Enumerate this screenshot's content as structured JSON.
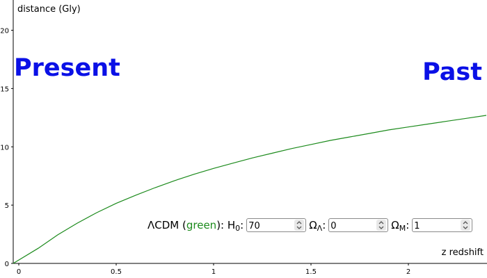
{
  "colors": {
    "curve": "#1b8a1b",
    "label_blue": "#0a10e6",
    "axis": "#000000",
    "model_text": "#1b8a1b"
  },
  "chart_data": {
    "type": "line",
    "title": "",
    "xlabel": "z redshift",
    "ylabel": "distance (Gly)",
    "xlim": [
      0,
      2.4
    ],
    "ylim": [
      0,
      22
    ],
    "x_ticks": [
      0,
      0.5,
      1,
      1.5,
      2
    ],
    "x_tick_labels": [
      "0",
      "0.5",
      "1",
      "1.5",
      "2"
    ],
    "y_ticks": [
      0,
      5,
      10,
      15,
      20
    ],
    "y_tick_labels": [
      "0",
      "5",
      "10",
      "15",
      "20"
    ],
    "grid": false,
    "series": [
      {
        "color": "#1b8a1b",
        "x": [
          0,
          0.1,
          0.2,
          0.3,
          0.4,
          0.5,
          0.6,
          0.7,
          0.8,
          0.9,
          1.0,
          1.1,
          1.2,
          1.3,
          1.4,
          1.5,
          1.6,
          1.7,
          1.8,
          1.9,
          2.0,
          2.1,
          2.2,
          2.3,
          2.4
        ],
        "y": [
          0,
          1.3,
          2.45,
          3.45,
          4.35,
          5.15,
          5.85,
          6.5,
          7.1,
          7.65,
          8.15,
          8.6,
          9.05,
          9.45,
          9.85,
          10.2,
          10.55,
          10.85,
          11.15,
          11.45,
          11.7,
          11.95,
          12.2,
          12.45,
          12.7
        ]
      }
    ],
    "annotations": [
      "Present",
      "Past"
    ]
  },
  "labels": {
    "present": "Present",
    "past": "Past"
  },
  "controls": {
    "model_prefix": "ΛCDM (",
    "model_color_word": "green",
    "model_suffix": "): H",
    "h0_sub": "0",
    "h0_value": "70",
    "omega_lambda_prefix": "Ω",
    "omega_lambda_sub": "Λ",
    "omega_lambda_value": "0",
    "omega_m_prefix": "Ω",
    "omega_m_sub": "M",
    "omega_m_value": "1"
  }
}
